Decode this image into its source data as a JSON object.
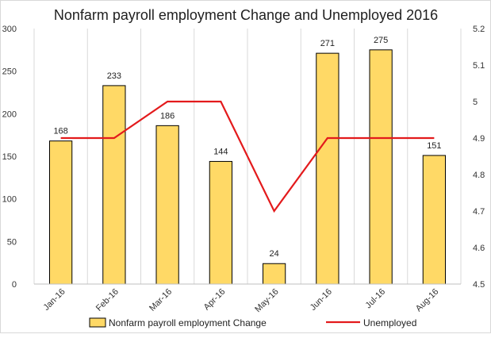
{
  "chart_data": {
    "type": "bar-line-combo",
    "title": "Nonfarm payroll employment Change and Unemployed 2016",
    "categories": [
      "Jan-16",
      "Feb-16",
      "Mar-16",
      "Apr-16",
      "May-16",
      "Jun-16",
      "Jul-16",
      "Aug-16"
    ],
    "series": [
      {
        "name": "Nonfarm payroll employment Change",
        "type": "bar",
        "axis": "left",
        "values": [
          168,
          233,
          186,
          144,
          24,
          271,
          275,
          151
        ],
        "data_labels": true,
        "color": "#FFD966",
        "border_color": "#000000"
      },
      {
        "name": "Unemployed",
        "type": "line",
        "axis": "right",
        "values": [
          4.9,
          4.9,
          5.0,
          5.0,
          4.7,
          4.9,
          4.9,
          4.9
        ],
        "color": "#E31A1C"
      }
    ],
    "y_left": {
      "range": [
        0,
        300
      ],
      "ticks": [
        0,
        50,
        100,
        150,
        200,
        250,
        300
      ]
    },
    "y_right": {
      "range": [
        4.5,
        5.2
      ],
      "ticks": [
        "4.5",
        "4.6",
        "4.7",
        "4.8",
        "4.9",
        "5",
        "5.1",
        "5.2"
      ]
    },
    "grid": {
      "horizontal": false,
      "vertical": true
    },
    "legend": {
      "position": "bottom",
      "entries": [
        {
          "label": "Nonfarm payroll employment Change",
          "kind": "bar"
        },
        {
          "label": "Unemployed",
          "kind": "line"
        }
      ]
    }
  }
}
